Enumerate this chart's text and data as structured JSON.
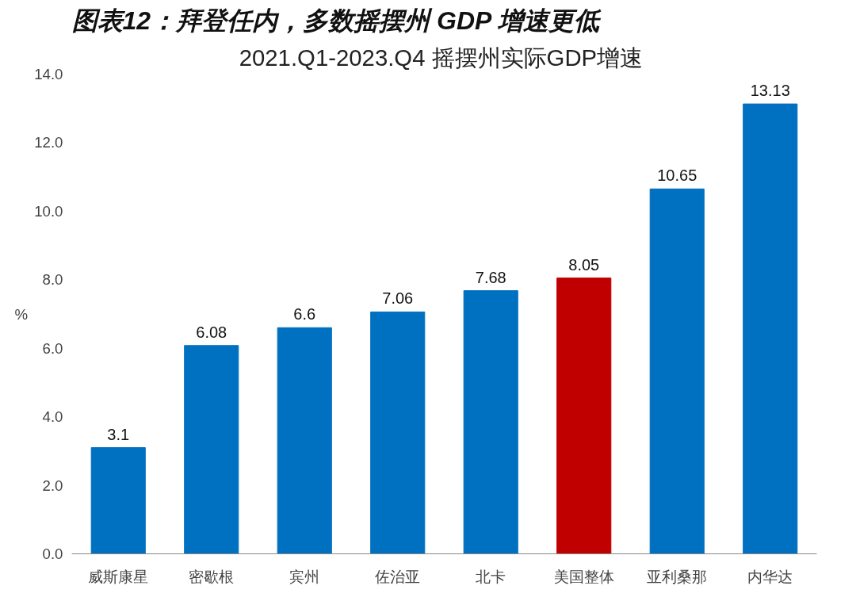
{
  "chart_data": {
    "type": "bar",
    "title": "图表12：拜登任内，多数摇摆州 GDP 增速更低",
    "subtitle": "2021.Q1-2023.Q4  摇摆州实际GDP增速",
    "ylabel": "%",
    "categories": [
      "威斯康星",
      "密歇根",
      "宾州",
      "佐治亚",
      "北卡",
      "美国整体",
      "亚利桑那",
      "内华达"
    ],
    "values": [
      3.1,
      6.08,
      6.6,
      7.06,
      7.68,
      8.05,
      10.65,
      13.13
    ],
    "colors": [
      "#0070c0",
      "#0070c0",
      "#0070c0",
      "#0070c0",
      "#0070c0",
      "#c00000",
      "#0070c0",
      "#0070c0"
    ],
    "ylim": [
      0,
      14
    ],
    "yticks": [
      {
        "value": 0,
        "label": "0.0"
      },
      {
        "value": 2,
        "label": "2.0"
      },
      {
        "value": 4,
        "label": "4.0"
      },
      {
        "value": 6,
        "label": "6.0"
      },
      {
        "value": 8,
        "label": "8.0"
      },
      {
        "value": 10,
        "label": "10.0"
      },
      {
        "value": 12,
        "label": "12.0"
      },
      {
        "value": 14,
        "label": "14.0"
      }
    ],
    "grid": false,
    "data_labels": true
  }
}
